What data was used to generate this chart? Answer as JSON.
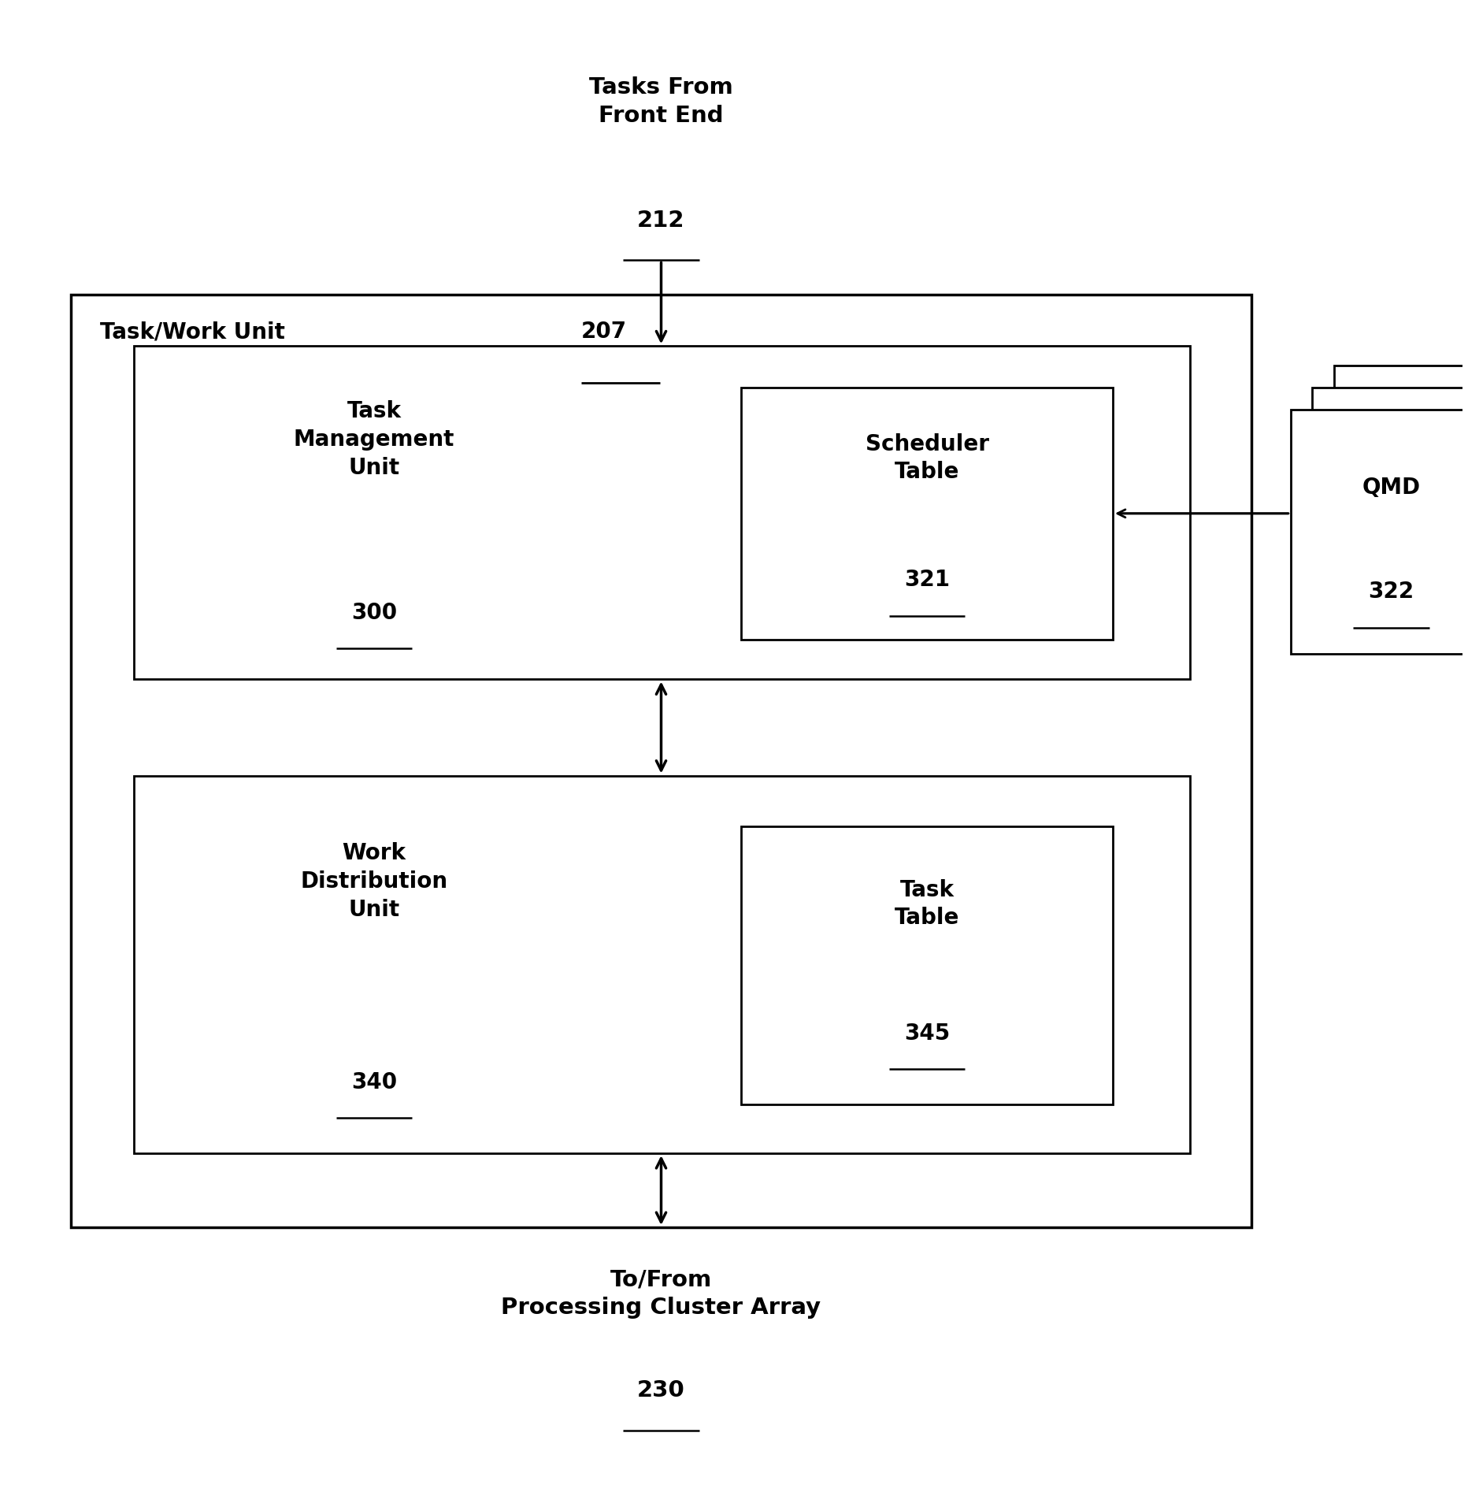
{
  "bg_color": "#ffffff",
  "text_color": "#000000",
  "box_color": "#ffffff",
  "box_edge_color": "#000000",
  "fig_width": 18.64,
  "fig_height": 18.94,
  "top_label_lines": [
    "Tasks From",
    "Front End"
  ],
  "top_label_num": "212",
  "bottom_label_lines": [
    "To/From",
    "Processing Cluster Array"
  ],
  "bottom_label_num": "230",
  "outer_box_label": "Task/Work Unit ",
  "outer_box_label_num": "207",
  "tmu_lines": [
    "Task",
    "Management",
    "Unit"
  ],
  "tmu_num": "300",
  "sched_lines": [
    "Scheduler",
    "Table"
  ],
  "sched_num": "321",
  "wdu_lines": [
    "Work",
    "Distribution",
    "Unit"
  ],
  "wdu_num": "340",
  "task_table_lines": [
    "Task",
    "Table"
  ],
  "task_table_num": "345",
  "qmd_label": "QMD",
  "qmd_num": "322",
  "lw_outer": 2.5,
  "lw_inner": 2.0,
  "fontsize_main": 20,
  "fontsize_label": 22
}
